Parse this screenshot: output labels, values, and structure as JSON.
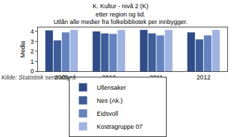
{
  "chart_data": {
    "type": "bar",
    "title": [
      "K. Kultur - nivå 2 (K)",
      "etter region og tid.",
      "Utlån alle medier fra folkebibliotek per innbygger."
    ],
    "y_label": "Media",
    "categories": [
      "2009",
      "2010",
      "2011",
      "2012"
    ],
    "series": [
      {
        "name": "Ullensaker",
        "color": "#2f4b8a",
        "values": [
          4.1,
          4.0,
          4.15,
          3.9
        ]
      },
      {
        "name": "Nes (Ak.)",
        "color": "#3f5d98",
        "values": [
          3.1,
          3.8,
          3.8,
          3.2
        ]
      },
      {
        "name": "Eidsvoll",
        "color": "#6583c0",
        "values": [
          3.9,
          3.75,
          3.6,
          3.6
        ]
      },
      {
        "name": "Kostragruppe 07",
        "color": "#9fb4e2",
        "values": [
          4.15,
          4.15,
          4.15,
          4.15
        ]
      }
    ],
    "ylim": [
      0,
      4.4
    ],
    "yticks": [
      0,
      1,
      2,
      3,
      4
    ],
    "grid": false,
    "legend": "bottom",
    "source": "Kilde: Statistisk sentralbyrå"
  }
}
